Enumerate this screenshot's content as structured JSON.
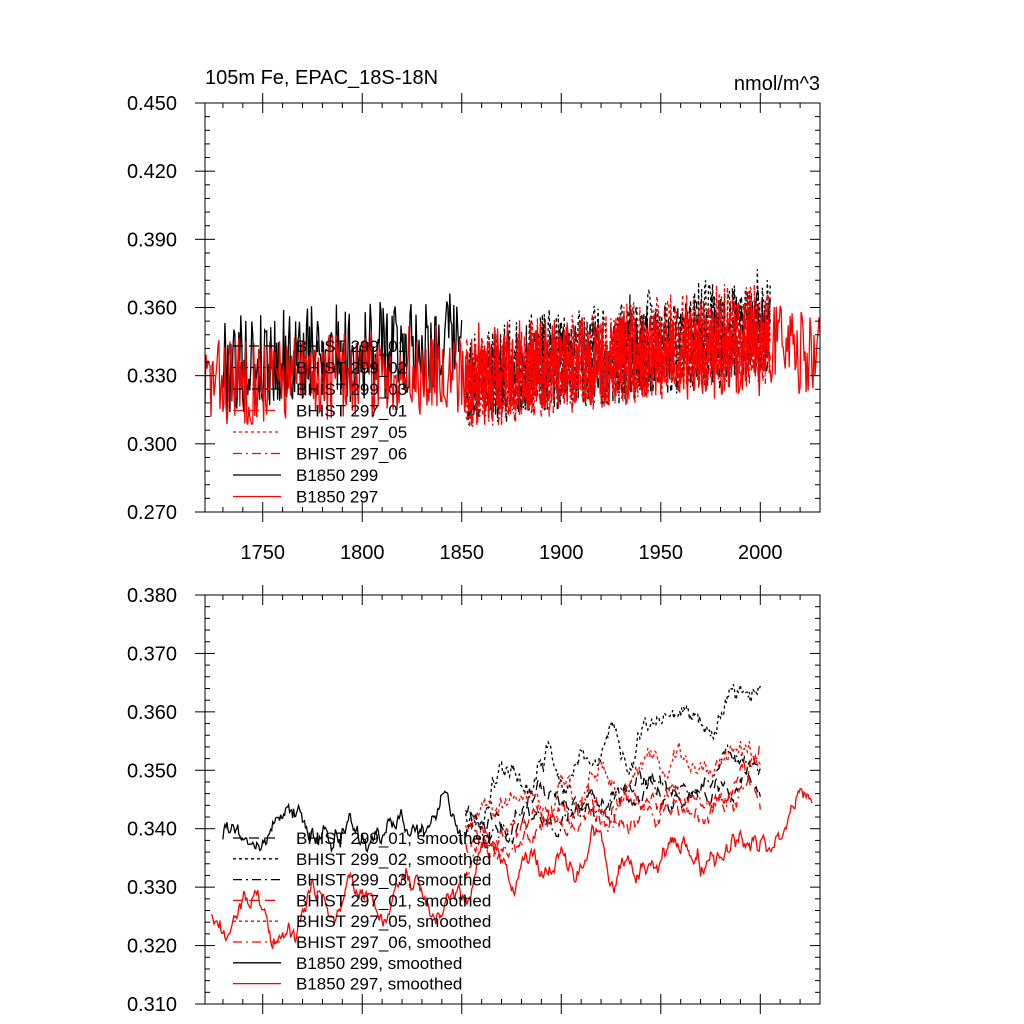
{
  "chart_data": [
    {
      "type": "line",
      "title": "105m Fe, EPAC_18S-18N",
      "units": "nmol/m^3",
      "xlabel": "",
      "ylabel": "",
      "xlim": [
        1721,
        2030
      ],
      "ylim": [
        0.27,
        0.45
      ],
      "x_ticks": [
        1750,
        1800,
        1850,
        1900,
        1950,
        2000
      ],
      "x_tick_labels": [
        "1750",
        "1800",
        "1850",
        "1900",
        "1950",
        "2000"
      ],
      "y_ticks": [
        0.27,
        0.3,
        0.33,
        0.36,
        0.39,
        0.42,
        0.45
      ],
      "y_tick_labels": [
        "0.270",
        "0.300",
        "0.330",
        "0.360",
        "0.390",
        "0.420",
        "0.450"
      ],
      "legend_position": "left",
      "series": [
        {
          "name": "BHIST 299_01",
          "color": "#000000",
          "style": "longdash",
          "x_range": [
            1852,
            2005
          ],
          "base": 0.328,
          "trend": 0.022,
          "noise": 0.02,
          "seed": 11
        },
        {
          "name": "BHIST 299_02",
          "color": "#000000",
          "style": "dot",
          "x_range": [
            1852,
            2005
          ],
          "base": 0.33,
          "trend": 0.026,
          "noise": 0.022,
          "seed": 23
        },
        {
          "name": "BHIST 299_03",
          "color": "#000000",
          "style": "dashdot",
          "x_range": [
            1852,
            2005
          ],
          "base": 0.327,
          "trend": 0.02,
          "noise": 0.02,
          "seed": 37
        },
        {
          "name": "BHIST 297_01",
          "color": "#ff0000",
          "style": "longdash",
          "x_range": [
            1852,
            2005
          ],
          "base": 0.326,
          "trend": 0.02,
          "noise": 0.02,
          "seed": 41
        },
        {
          "name": "BHIST 297_05",
          "color": "#ff0000",
          "style": "dot",
          "x_range": [
            1852,
            2005
          ],
          "base": 0.328,
          "trend": 0.024,
          "noise": 0.022,
          "seed": 53
        },
        {
          "name": "BHIST 297_06",
          "color": "#ff0000",
          "style": "dashdot",
          "x_range": [
            1852,
            2005
          ],
          "base": 0.326,
          "trend": 0.02,
          "noise": 0.02,
          "seed": 67
        },
        {
          "name": "B1850 299",
          "color": "#000000",
          "style": "solid",
          "x_range": [
            1730,
            1850
          ],
          "base": 0.335,
          "trend": 0.01,
          "noise": 0.022,
          "seed": 79
        },
        {
          "name": "B1850 297",
          "color": "#ff0000",
          "style": "solid",
          "x_range": [
            1721,
            2030
          ],
          "base": 0.327,
          "trend": 0.015,
          "noise": 0.02,
          "seed": 83
        }
      ]
    },
    {
      "type": "line",
      "title": "",
      "xlabel": "",
      "ylabel": "",
      "xlim": [
        1721,
        2030
      ],
      "ylim": [
        0.31,
        0.38
      ],
      "x_ticks": [
        1750,
        1800,
        1850,
        1900,
        1950,
        2000
      ],
      "y_ticks": [
        0.31,
        0.32,
        0.33,
        0.34,
        0.35,
        0.36,
        0.37,
        0.38
      ],
      "y_tick_labels": [
        "0.310",
        "0.320",
        "0.330",
        "0.340",
        "0.350",
        "0.360",
        "0.370",
        "0.380"
      ],
      "legend_position": "left",
      "series": [
        {
          "name": "BHIST 299_01, smoothed",
          "color": "#000000",
          "style": "longdash",
          "x_range": [
            1852,
            2000
          ],
          "base": 0.342,
          "trend": 0.006,
          "noise": 0.006,
          "seed": 101
        },
        {
          "name": "BHIST 299_02, smoothed",
          "color": "#000000",
          "style": "dot",
          "x_range": [
            1852,
            2000
          ],
          "base": 0.345,
          "trend": 0.018,
          "noise": 0.007,
          "seed": 113
        },
        {
          "name": "BHIST 299_03, smoothed",
          "color": "#000000",
          "style": "dashdot",
          "x_range": [
            1852,
            2000
          ],
          "base": 0.34,
          "trend": 0.01,
          "noise": 0.006,
          "seed": 127
        },
        {
          "name": "BHIST 297_01, smoothed",
          "color": "#ff0000",
          "style": "longdash",
          "x_range": [
            1852,
            2000
          ],
          "base": 0.338,
          "trend": 0.008,
          "noise": 0.006,
          "seed": 131
        },
        {
          "name": "BHIST 297_05, smoothed",
          "color": "#ff0000",
          "style": "dot",
          "x_range": [
            1852,
            2000
          ],
          "base": 0.343,
          "trend": 0.012,
          "noise": 0.007,
          "seed": 149
        },
        {
          "name": "BHIST 297_06, smoothed",
          "color": "#ff0000",
          "style": "dashdot",
          "x_range": [
            1852,
            2000
          ],
          "base": 0.338,
          "trend": 0.01,
          "noise": 0.006,
          "seed": 157
        },
        {
          "name": "B1850 299, smoothed",
          "color": "#000000",
          "style": "solid",
          "x_range": [
            1730,
            1850
          ],
          "base": 0.34,
          "trend": 0.002,
          "noise": 0.007,
          "seed": 163
        },
        {
          "name": "B1850 297, smoothed",
          "color": "#ff0000",
          "style": "solid",
          "x_range": [
            1724,
            2026
          ],
          "base": 0.324,
          "trend": 0.016,
          "noise": 0.007,
          "seed": 173
        }
      ]
    }
  ]
}
